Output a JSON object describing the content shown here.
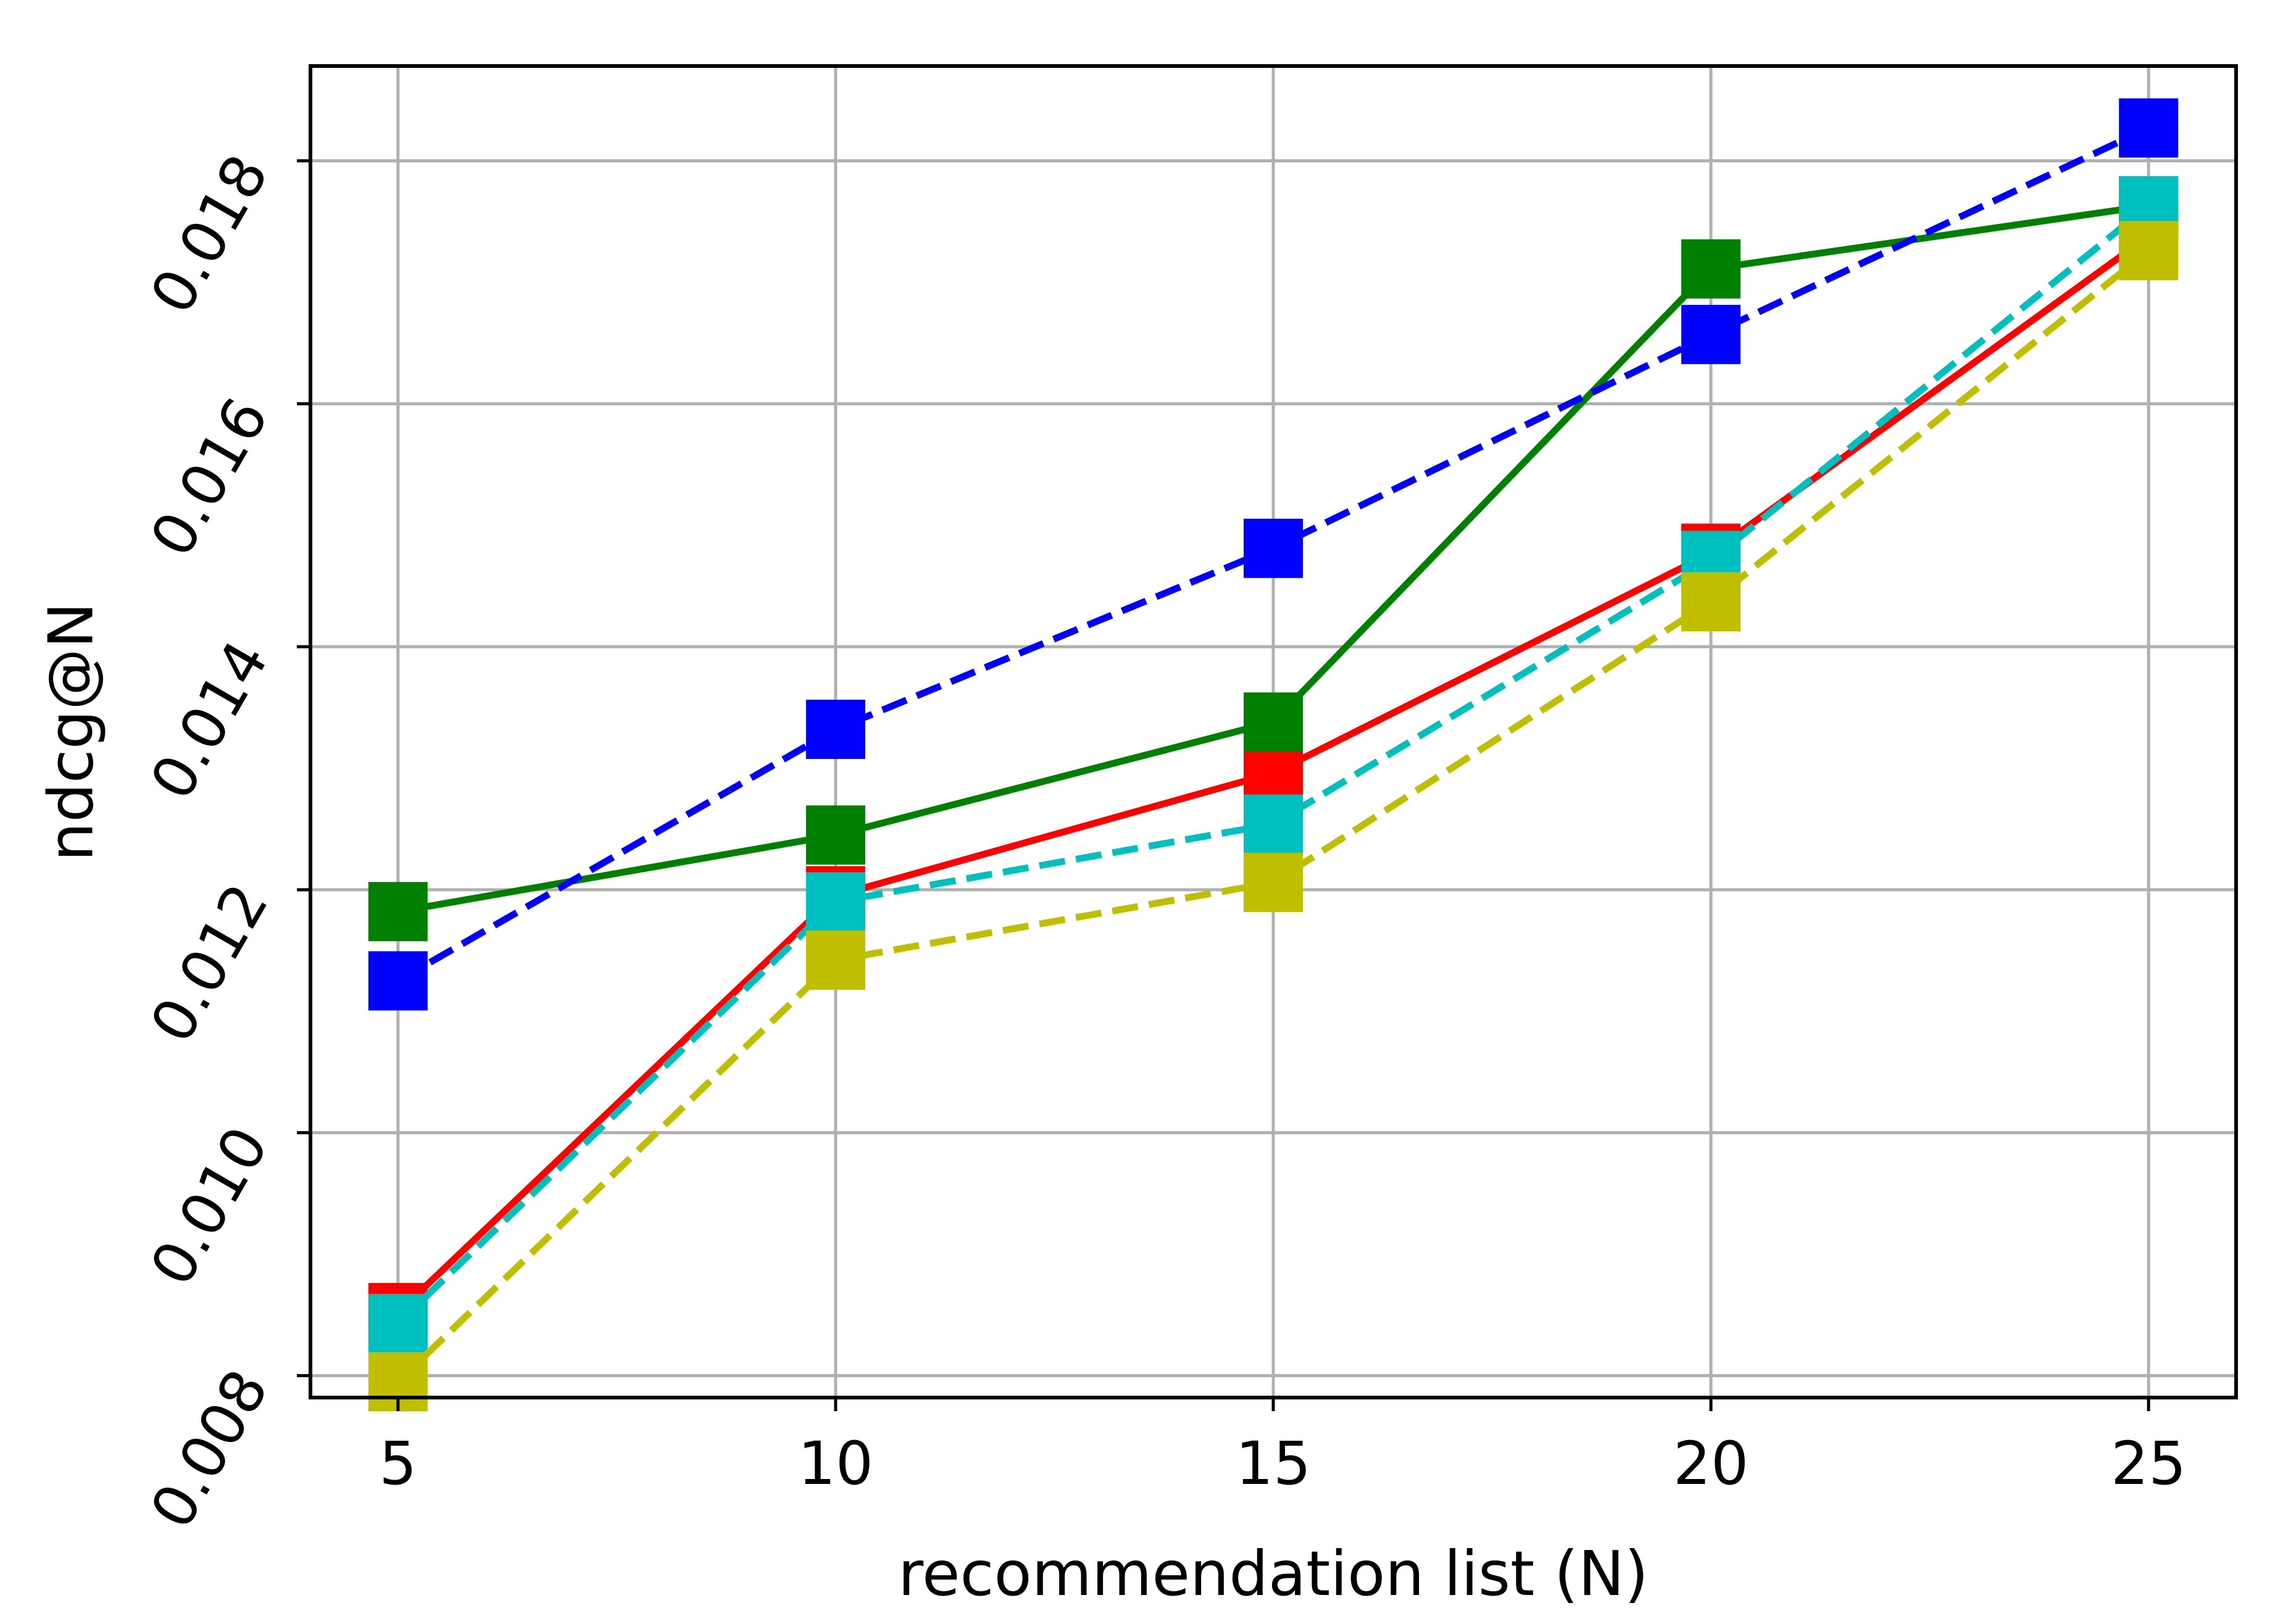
{
  "chart_data": {
    "type": "line",
    "title": "",
    "xlabel": "recommendation list (N)",
    "ylabel": "ndcg@N",
    "x": [
      5,
      10,
      15,
      20,
      25
    ],
    "xlim": [
      4,
      26
    ],
    "ylim": [
      0.00782,
      0.01878
    ],
    "xticks": [
      5,
      10,
      15,
      20,
      25
    ],
    "xtick_labels": [
      "5",
      "10",
      "15",
      "20",
      "25"
    ],
    "yticks": [
      0.008,
      0.01,
      0.012,
      0.014,
      0.016,
      0.018
    ],
    "ytick_labels": [
      "0.008",
      "0.010",
      "0.012",
      "0.014",
      "0.016",
      "0.018"
    ],
    "grid": true,
    "legend": "none",
    "series": [
      {
        "color": "#ff0000",
        "linestyle": "solid",
        "marker": "square",
        "values": [
          0.00852,
          0.01195,
          0.01296,
          0.01477,
          0.01738
        ]
      },
      {
        "color": "#008000",
        "linestyle": "solid",
        "marker": "square",
        "values": [
          0.01182,
          0.01245,
          0.01338,
          0.01711,
          0.01763
        ]
      },
      {
        "color": "#0000ff",
        "linestyle": "dashed",
        "marker": "square",
        "values": [
          0.01125,
          0.01332,
          0.01481,
          0.01657,
          0.01827
        ]
      },
      {
        "color": "#00bfbf",
        "linestyle": "dashed",
        "marker": "square",
        "values": [
          0.00843,
          0.0119,
          0.01254,
          0.01471,
          0.01763
        ]
      },
      {
        "color": "#bfbf00",
        "linestyle": "dashed",
        "marker": "square",
        "values": [
          0.00795,
          0.01142,
          0.01206,
          0.01437,
          0.01726
        ]
      }
    ]
  }
}
